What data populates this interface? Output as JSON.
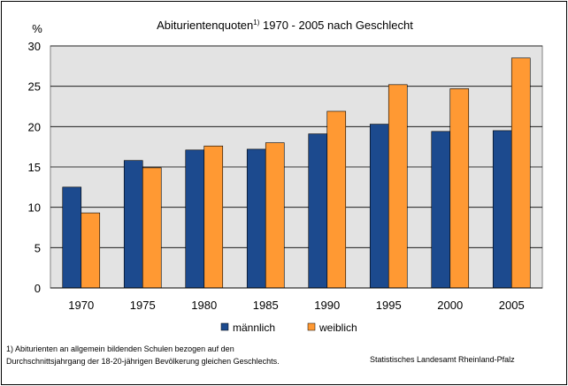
{
  "chart_data": {
    "type": "bar",
    "title": "Abiturientenquoten",
    "title_sup": "1)",
    "title_rest": " 1970 - 2005  nach Geschlecht",
    "ylabel": "%",
    "ylim": [
      0,
      30
    ],
    "yticks": [
      0,
      5,
      10,
      15,
      20,
      25,
      30
    ],
    "grid": true,
    "legend_position": "bottom",
    "categories": [
      "1970",
      "1975",
      "1980",
      "1985",
      "1990",
      "1995",
      "2000",
      "2005"
    ],
    "series": [
      {
        "name": "männlich",
        "color": "#1c4a8e",
        "values": [
          12.5,
          15.8,
          17.1,
          17.2,
          19.1,
          20.3,
          19.4,
          19.5
        ]
      },
      {
        "name": "weiblich",
        "color": "#ff9933",
        "values": [
          9.3,
          14.9,
          17.6,
          18.0,
          21.9,
          25.2,
          24.7,
          28.5
        ]
      }
    ]
  },
  "footnote": {
    "line1": "1) Abiturienten an allgemein bildenden Schulen bezogen auf den",
    "line2": "Durchschnittsjahrgang der 18-20-jährigen Bevölkerung gleichen Geschlechts."
  },
  "source": "Statistisches Landesamt Rheinland-Pfalz"
}
